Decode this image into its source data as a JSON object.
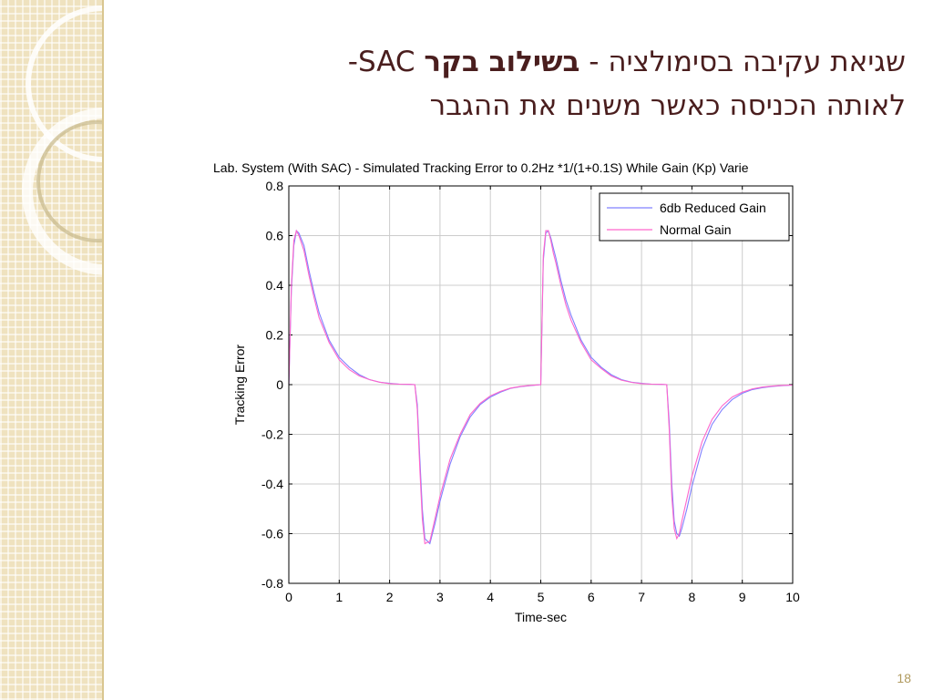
{
  "slide": {
    "title_line1_part1": "שגיאת עקיבה בסימולציה",
    "title_line1_sep": " - ",
    "title_line1_bold": "בשילוב בקר",
    "title_line1_part2": " SAC-",
    "title_line2": "לאותה הכניסה כאשר משנים את ההגבר",
    "page_number": "18"
  },
  "colors": {
    "title": "#4a1e1e",
    "series_reduced": "#8080ff",
    "series_normal": "#ff66cc",
    "panel": "#efe2bf"
  },
  "chart_data": {
    "type": "line",
    "title": "Lab. System (With SAC) - Simulated Tracking Error to 0.2Hz *1/(1+0.1S) While Gain (Kp) Varie",
    "xlabel": "Time-sec",
    "ylabel": "Tracking Error",
    "xlim": [
      0,
      10
    ],
    "ylim": [
      -0.8,
      0.8
    ],
    "xticks": [
      "0",
      "1",
      "2",
      "3",
      "4",
      "5",
      "6",
      "7",
      "8",
      "9",
      "10"
    ],
    "yticks": [
      "0.8",
      "0.6",
      "0.4",
      "0.2",
      "0",
      "-0.2",
      "-0.4",
      "-0.6",
      "-0.8"
    ],
    "grid": true,
    "legend_position": "top-right",
    "series": [
      {
        "name": "6db Reduced Gain",
        "color": "#8080ff",
        "x": [
          0,
          0.05,
          0.1,
          0.15,
          0.2,
          0.3,
          0.4,
          0.5,
          0.6,
          0.8,
          1.0,
          1.2,
          1.4,
          1.6,
          1.8,
          2.0,
          2.2,
          2.4,
          2.5,
          2.55,
          2.6,
          2.65,
          2.7,
          2.8,
          2.9,
          3.0,
          3.2,
          3.4,
          3.6,
          3.8,
          4.0,
          4.2,
          4.4,
          4.6,
          4.8,
          5.0,
          5.05,
          5.1,
          5.15,
          5.2,
          5.25,
          5.3,
          5.4,
          5.5,
          5.6,
          5.8,
          6.0,
          6.2,
          6.4,
          6.6,
          6.8,
          7.0,
          7.2,
          7.4,
          7.5,
          7.55,
          7.6,
          7.65,
          7.7,
          7.75,
          7.8,
          7.9,
          8.0,
          8.2,
          8.4,
          8.6,
          8.8,
          9.0,
          9.2,
          9.4,
          9.6,
          9.8,
          10.0
        ],
        "y": [
          0,
          0.38,
          0.56,
          0.62,
          0.61,
          0.56,
          0.46,
          0.37,
          0.29,
          0.18,
          0.11,
          0.07,
          0.04,
          0.02,
          0.01,
          0.005,
          0.002,
          0.001,
          0,
          -0.08,
          -0.3,
          -0.5,
          -0.62,
          -0.64,
          -0.56,
          -0.47,
          -0.32,
          -0.21,
          -0.13,
          -0.08,
          -0.05,
          -0.03,
          -0.015,
          -0.008,
          -0.004,
          0,
          0.5,
          0.61,
          0.62,
          0.59,
          0.55,
          0.51,
          0.42,
          0.34,
          0.28,
          0.18,
          0.11,
          0.07,
          0.04,
          0.02,
          0.01,
          0.005,
          0.002,
          0.001,
          0,
          -0.15,
          -0.4,
          -0.55,
          -0.6,
          -0.61,
          -0.58,
          -0.5,
          -0.41,
          -0.26,
          -0.16,
          -0.1,
          -0.06,
          -0.035,
          -0.02,
          -0.012,
          -0.007,
          -0.004,
          -0.002
        ]
      },
      {
        "name": "Normal Gain",
        "color": "#ff66cc",
        "x": [
          0,
          0.05,
          0.1,
          0.15,
          0.2,
          0.3,
          0.4,
          0.5,
          0.6,
          0.8,
          1.0,
          1.2,
          1.4,
          1.6,
          1.8,
          2.0,
          2.2,
          2.4,
          2.5,
          2.55,
          2.6,
          2.65,
          2.7,
          2.8,
          2.9,
          3.0,
          3.2,
          3.4,
          3.6,
          3.8,
          4.0,
          4.2,
          4.4,
          4.6,
          4.8,
          5.0,
          5.05,
          5.1,
          5.15,
          5.2,
          5.25,
          5.3,
          5.4,
          5.5,
          5.6,
          5.8,
          6.0,
          6.2,
          6.4,
          6.6,
          6.8,
          7.0,
          7.2,
          7.4,
          7.5,
          7.55,
          7.6,
          7.65,
          7.7,
          7.75,
          7.8,
          7.9,
          8.0,
          8.2,
          8.4,
          8.6,
          8.8,
          9.0,
          9.2,
          9.4,
          9.6,
          9.8,
          10.0
        ],
        "y": [
          0,
          0.4,
          0.58,
          0.62,
          0.6,
          0.54,
          0.44,
          0.35,
          0.27,
          0.17,
          0.1,
          0.06,
          0.035,
          0.02,
          0.01,
          0.004,
          0.002,
          0.001,
          0,
          -0.1,
          -0.34,
          -0.54,
          -0.64,
          -0.63,
          -0.54,
          -0.45,
          -0.3,
          -0.2,
          -0.12,
          -0.075,
          -0.045,
          -0.027,
          -0.014,
          -0.007,
          -0.003,
          0,
          0.52,
          0.62,
          0.62,
          0.58,
          0.53,
          0.49,
          0.4,
          0.32,
          0.26,
          0.17,
          0.1,
          0.065,
          0.035,
          0.018,
          0.009,
          0.004,
          0.002,
          0.001,
          0,
          -0.18,
          -0.45,
          -0.58,
          -0.62,
          -0.6,
          -0.55,
          -0.46,
          -0.37,
          -0.23,
          -0.14,
          -0.085,
          -0.05,
          -0.03,
          -0.017,
          -0.01,
          -0.006,
          -0.003,
          -0.002
        ]
      }
    ]
  }
}
